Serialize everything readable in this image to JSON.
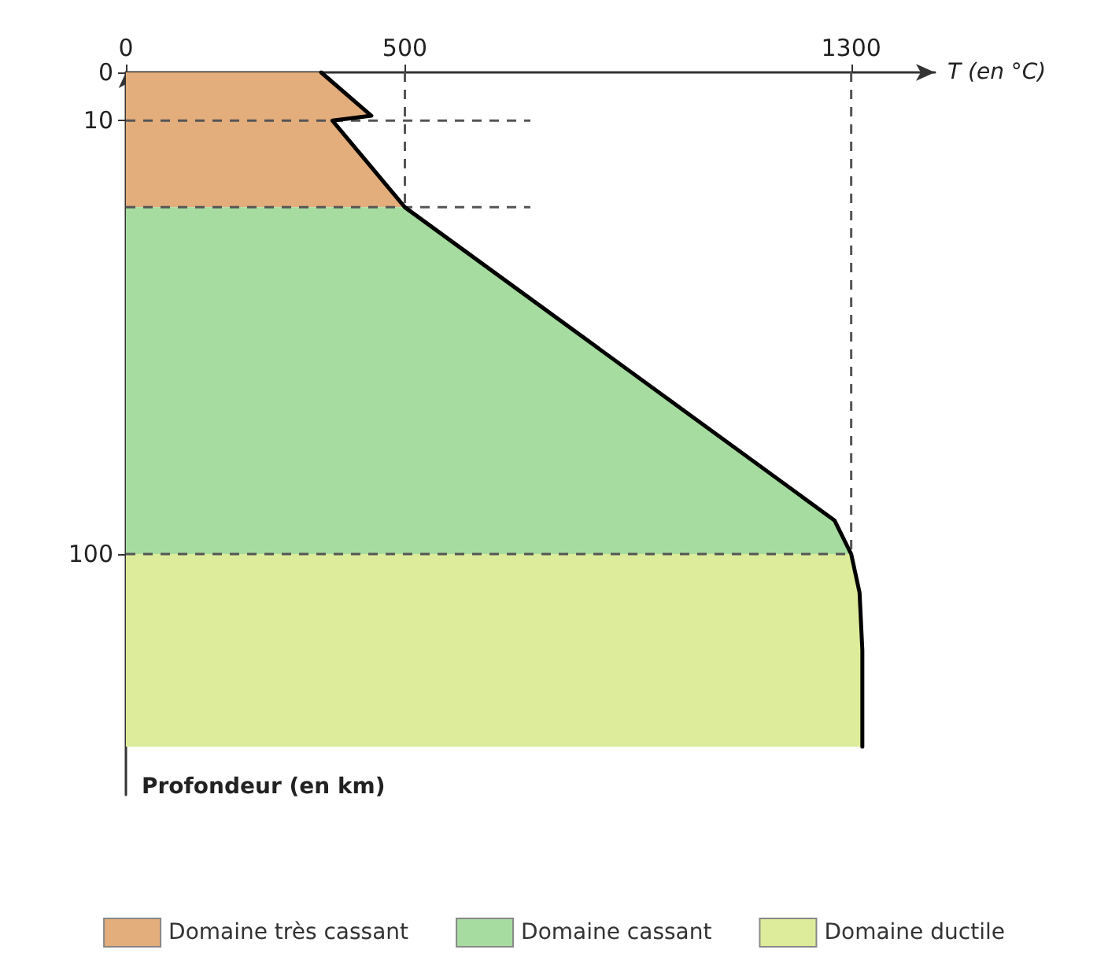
{
  "chart_data": {
    "type": "area",
    "xlabel": "T (en °C)",
    "ylabel": "Profondeur (en km)",
    "xlim": [
      0,
      1450
    ],
    "xticks": [
      0,
      500,
      1300
    ],
    "ylim": [
      150,
      0
    ],
    "yticks": [
      0,
      10,
      100
    ],
    "grid": false,
    "legend": "bottom",
    "series": [
      {
        "name": "Domaine très cassant",
        "color": "#e3ad7c",
        "x": [
          0,
          350,
          440,
          370,
          500,
          0
        ],
        "values": [
          0,
          0,
          9,
          10,
          28,
          28
        ]
      },
      {
        "name": "Domaine cassant",
        "color": "#a6dca0",
        "x": [
          0,
          500,
          1270,
          1300,
          0
        ],
        "values": [
          28,
          28,
          93,
          100,
          100
        ]
      },
      {
        "name": "Domaine ductile",
        "color": "#dcec9a",
        "x": [
          0,
          1300,
          1315,
          1320,
          1320,
          0
        ],
        "values": [
          100,
          100,
          108,
          120,
          140,
          140
        ]
      },
      {
        "type": "line",
        "color": "#000000",
        "x": [
          350,
          440,
          370,
          500,
          1270,
          1300,
          1315,
          1320,
          1320
        ],
        "values": [
          0,
          9,
          10,
          28,
          93,
          100,
          108,
          120,
          140
        ]
      }
    ],
    "ref_lines": [
      {
        "axis": "x",
        "value": 500,
        "color": "#555555",
        "line_style": "dashed"
      },
      {
        "axis": "x",
        "value": 1300,
        "color": "#555555",
        "line_style": "dashed"
      },
      {
        "axis": "y",
        "value": 10,
        "color": "#555555",
        "line_style": "dashed"
      },
      {
        "axis": "y",
        "value": 28,
        "color": "#555555",
        "line_style": "dashed"
      },
      {
        "axis": "y",
        "value": 100,
        "color": "#555555",
        "line_style": "dashed"
      }
    ]
  }
}
